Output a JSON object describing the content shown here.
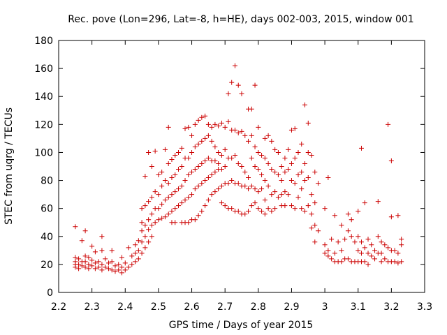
{
  "chart_data": {
    "type": "scatter",
    "title": "Rec. pove (Lon=296, Lat=-8, h=HE), days 002-003, 2015, window 001",
    "xlabel": "GPS time / Days of year 2015",
    "ylabel": "STEC from uqrg / TECUs",
    "xlim": [
      2.2,
      3.3
    ],
    "ylim": [
      0,
      180
    ],
    "xticks": [
      "2.2",
      "2.3",
      "2.4",
      "2.5",
      "2.6",
      "2.7",
      "2.8",
      "2.9",
      "3",
      "3.1",
      "3.2",
      "3.3"
    ],
    "yticks": [
      "0",
      "20",
      "40",
      "60",
      "80",
      "100",
      "120",
      "140",
      "160",
      "180"
    ],
    "grid": false,
    "marker": "+",
    "color": "#cc0000",
    "points": [
      [
        2.25,
        47
      ],
      [
        2.25,
        25
      ],
      [
        2.25,
        22
      ],
      [
        2.25,
        20
      ],
      [
        2.25,
        18
      ],
      [
        2.26,
        24
      ],
      [
        2.26,
        20
      ],
      [
        2.26,
        17
      ],
      [
        2.27,
        37
      ],
      [
        2.27,
        22
      ],
      [
        2.27,
        19
      ],
      [
        2.28,
        44
      ],
      [
        2.28,
        26
      ],
      [
        2.28,
        22
      ],
      [
        2.28,
        18
      ],
      [
        2.29,
        25
      ],
      [
        2.29,
        20
      ],
      [
        2.29,
        17
      ],
      [
        2.3,
        33
      ],
      [
        2.3,
        23
      ],
      [
        2.3,
        19
      ],
      [
        2.31,
        29
      ],
      [
        2.31,
        21
      ],
      [
        2.31,
        17
      ],
      [
        2.32,
        22
      ],
      [
        2.32,
        18
      ],
      [
        2.33,
        40
      ],
      [
        2.33,
        30
      ],
      [
        2.33,
        20
      ],
      [
        2.33,
        16
      ],
      [
        2.34,
        24
      ],
      [
        2.34,
        18
      ],
      [
        2.35,
        21
      ],
      [
        2.35,
        17
      ],
      [
        2.36,
        30
      ],
      [
        2.36,
        22
      ],
      [
        2.36,
        16
      ],
      [
        2.37,
        19
      ],
      [
        2.37,
        15
      ],
      [
        2.38,
        20
      ],
      [
        2.38,
        16
      ],
      [
        2.39,
        25
      ],
      [
        2.39,
        18
      ],
      [
        2.39,
        14
      ],
      [
        2.4,
        21
      ],
      [
        2.4,
        16
      ],
      [
        2.41,
        32
      ],
      [
        2.41,
        18
      ],
      [
        2.42,
        26
      ],
      [
        2.42,
        20
      ],
      [
        2.43,
        34
      ],
      [
        2.43,
        28
      ],
      [
        2.43,
        22
      ],
      [
        2.44,
        37
      ],
      [
        2.44,
        30
      ],
      [
        2.44,
        24
      ],
      [
        2.45,
        60
      ],
      [
        2.45,
        50
      ],
      [
        2.45,
        44
      ],
      [
        2.45,
        36
      ],
      [
        2.45,
        28
      ],
      [
        2.46,
        83
      ],
      [
        2.46,
        62
      ],
      [
        2.46,
        48
      ],
      [
        2.46,
        40
      ],
      [
        2.46,
        32
      ],
      [
        2.47,
        100
      ],
      [
        2.47,
        65
      ],
      [
        2.47,
        52
      ],
      [
        2.47,
        45
      ],
      [
        2.47,
        36
      ],
      [
        2.48,
        90
      ],
      [
        2.48,
        68
      ],
      [
        2.48,
        56
      ],
      [
        2.48,
        48
      ],
      [
        2.48,
        40
      ],
      [
        2.49,
        101
      ],
      [
        2.49,
        72
      ],
      [
        2.49,
        60
      ],
      [
        2.49,
        50
      ],
      [
        2.5,
        84
      ],
      [
        2.5,
        70
      ],
      [
        2.5,
        60
      ],
      [
        2.5,
        52
      ],
      [
        2.51,
        86
      ],
      [
        2.51,
        76
      ],
      [
        2.51,
        63
      ],
      [
        2.51,
        53
      ],
      [
        2.52,
        102
      ],
      [
        2.52,
        80
      ],
      [
        2.52,
        66
      ],
      [
        2.52,
        54
      ],
      [
        2.53,
        118
      ],
      [
        2.53,
        92
      ],
      [
        2.53,
        78
      ],
      [
        2.53,
        68
      ],
      [
        2.53,
        56
      ],
      [
        2.54,
        95
      ],
      [
        2.54,
        82
      ],
      [
        2.54,
        70
      ],
      [
        2.54,
        58
      ],
      [
        2.54,
        50
      ],
      [
        2.55,
        98
      ],
      [
        2.55,
        84
      ],
      [
        2.55,
        72
      ],
      [
        2.55,
        60
      ],
      [
        2.55,
        50
      ],
      [
        2.56,
        100
      ],
      [
        2.56,
        88
      ],
      [
        2.56,
        74
      ],
      [
        2.56,
        62
      ],
      [
        2.57,
        103
      ],
      [
        2.57,
        90
      ],
      [
        2.57,
        76
      ],
      [
        2.57,
        64
      ],
      [
        2.57,
        50
      ],
      [
        2.58,
        117
      ],
      [
        2.58,
        96
      ],
      [
        2.58,
        80
      ],
      [
        2.58,
        66
      ],
      [
        2.58,
        50
      ],
      [
        2.59,
        118
      ],
      [
        2.59,
        96
      ],
      [
        2.59,
        84
      ],
      [
        2.59,
        68
      ],
      [
        2.59,
        50
      ],
      [
        2.6,
        112
      ],
      [
        2.6,
        100
      ],
      [
        2.6,
        86
      ],
      [
        2.6,
        70
      ],
      [
        2.6,
        52
      ],
      [
        2.61,
        120
      ],
      [
        2.61,
        104
      ],
      [
        2.61,
        88
      ],
      [
        2.61,
        74
      ],
      [
        2.61,
        52
      ],
      [
        2.62,
        123
      ],
      [
        2.62,
        106
      ],
      [
        2.62,
        90
      ],
      [
        2.62,
        76
      ],
      [
        2.62,
        55
      ],
      [
        2.63,
        125
      ],
      [
        2.63,
        108
      ],
      [
        2.63,
        92
      ],
      [
        2.63,
        78
      ],
      [
        2.63,
        58
      ],
      [
        2.64,
        126
      ],
      [
        2.64,
        110
      ],
      [
        2.64,
        94
      ],
      [
        2.64,
        80
      ],
      [
        2.64,
        62
      ],
      [
        2.65,
        120
      ],
      [
        2.65,
        112
      ],
      [
        2.65,
        96
      ],
      [
        2.65,
        82
      ],
      [
        2.65,
        66
      ],
      [
        2.66,
        118
      ],
      [
        2.66,
        108
      ],
      [
        2.66,
        94
      ],
      [
        2.66,
        84
      ],
      [
        2.66,
        70
      ],
      [
        2.67,
        120
      ],
      [
        2.67,
        104
      ],
      [
        2.67,
        94
      ],
      [
        2.67,
        86
      ],
      [
        2.67,
        72
      ],
      [
        2.68,
        119
      ],
      [
        2.68,
        100
      ],
      [
        2.68,
        92
      ],
      [
        2.68,
        88
      ],
      [
        2.68,
        74
      ],
      [
        2.69,
        121
      ],
      [
        2.69,
        98
      ],
      [
        2.69,
        88
      ],
      [
        2.69,
        76
      ],
      [
        2.69,
        64
      ],
      [
        2.7,
        118
      ],
      [
        2.7,
        102
      ],
      [
        2.7,
        90
      ],
      [
        2.7,
        78
      ],
      [
        2.7,
        62
      ],
      [
        2.71,
        142
      ],
      [
        2.71,
        122
      ],
      [
        2.71,
        96
      ],
      [
        2.71,
        78
      ],
      [
        2.71,
        60
      ],
      [
        2.72,
        150
      ],
      [
        2.72,
        116
      ],
      [
        2.72,
        96
      ],
      [
        2.72,
        80
      ],
      [
        2.72,
        60
      ],
      [
        2.73,
        162
      ],
      [
        2.73,
        116
      ],
      [
        2.73,
        98
      ],
      [
        2.73,
        78
      ],
      [
        2.73,
        58
      ],
      [
        2.74,
        148
      ],
      [
        2.74,
        114
      ],
      [
        2.74,
        92
      ],
      [
        2.74,
        78
      ],
      [
        2.74,
        58
      ],
      [
        2.75,
        142
      ],
      [
        2.75,
        115
      ],
      [
        2.75,
        90
      ],
      [
        2.75,
        76
      ],
      [
        2.75,
        56
      ],
      [
        2.76,
        112
      ],
      [
        2.76,
        86
      ],
      [
        2.76,
        76
      ],
      [
        2.76,
        56
      ],
      [
        2.77,
        131
      ],
      [
        2.77,
        108
      ],
      [
        2.77,
        82
      ],
      [
        2.77,
        74
      ],
      [
        2.77,
        58
      ],
      [
        2.78,
        131
      ],
      [
        2.78,
        112
      ],
      [
        2.78,
        96
      ],
      [
        2.78,
        76
      ],
      [
        2.78,
        62
      ],
      [
        2.79,
        148
      ],
      [
        2.79,
        104
      ],
      [
        2.79,
        90
      ],
      [
        2.79,
        74
      ],
      [
        2.79,
        64
      ],
      [
        2.8,
        118
      ],
      [
        2.8,
        100
      ],
      [
        2.8,
        88
      ],
      [
        2.8,
        72
      ],
      [
        2.8,
        60
      ],
      [
        2.81,
        98
      ],
      [
        2.81,
        84
      ],
      [
        2.81,
        74
      ],
      [
        2.81,
        58
      ],
      [
        2.82,
        110
      ],
      [
        2.82,
        96
      ],
      [
        2.82,
        80
      ],
      [
        2.82,
        66
      ],
      [
        2.82,
        56
      ],
      [
        2.83,
        112
      ],
      [
        2.83,
        92
      ],
      [
        2.83,
        76
      ],
      [
        2.83,
        60
      ],
      [
        2.84,
        108
      ],
      [
        2.84,
        88
      ],
      [
        2.84,
        70
      ],
      [
        2.84,
        58
      ],
      [
        2.85,
        102
      ],
      [
        2.85,
        86
      ],
      [
        2.85,
        72
      ],
      [
        2.85,
        60
      ],
      [
        2.86,
        100
      ],
      [
        2.86,
        84
      ],
      [
        2.86,
        68
      ],
      [
        2.87,
        90
      ],
      [
        2.87,
        80
      ],
      [
        2.87,
        70
      ],
      [
        2.87,
        62
      ],
      [
        2.88,
        96
      ],
      [
        2.88,
        86
      ],
      [
        2.88,
        72
      ],
      [
        2.88,
        62
      ],
      [
        2.89,
        102
      ],
      [
        2.89,
        88
      ],
      [
        2.89,
        70
      ],
      [
        2.9,
        116
      ],
      [
        2.9,
        92
      ],
      [
        2.9,
        80
      ],
      [
        2.9,
        62
      ],
      [
        2.91,
        117
      ],
      [
        2.91,
        96
      ],
      [
        2.91,
        78
      ],
      [
        2.91,
        60
      ],
      [
        2.92,
        100
      ],
      [
        2.92,
        84
      ],
      [
        2.92,
        68
      ],
      [
        2.93,
        106
      ],
      [
        2.93,
        86
      ],
      [
        2.93,
        74
      ],
      [
        2.93,
        60
      ],
      [
        2.94,
        134
      ],
      [
        2.94,
        92
      ],
      [
        2.94,
        80
      ],
      [
        2.94,
        58
      ],
      [
        2.95,
        121
      ],
      [
        2.95,
        100
      ],
      [
        2.95,
        82
      ],
      [
        2.95,
        62
      ],
      [
        2.96,
        98
      ],
      [
        2.96,
        70
      ],
      [
        2.96,
        56
      ],
      [
        2.96,
        46
      ],
      [
        2.97,
        86
      ],
      [
        2.97,
        64
      ],
      [
        2.97,
        48
      ],
      [
        2.97,
        36
      ],
      [
        2.98,
        78
      ],
      [
        2.98,
        44
      ],
      [
        3.0,
        60
      ],
      [
        3.0,
        34
      ],
      [
        3.0,
        28
      ],
      [
        3.01,
        82
      ],
      [
        3.01,
        30
      ],
      [
        3.01,
        26
      ],
      [
        3.02,
        38
      ],
      [
        3.02,
        24
      ],
      [
        3.03,
        55
      ],
      [
        3.03,
        28
      ],
      [
        3.03,
        22
      ],
      [
        3.04,
        36
      ],
      [
        3.04,
        22
      ],
      [
        3.05,
        48
      ],
      [
        3.05,
        30
      ],
      [
        3.05,
        22
      ],
      [
        3.06,
        38
      ],
      [
        3.06,
        24
      ],
      [
        3.07,
        56
      ],
      [
        3.07,
        44
      ],
      [
        3.07,
        24
      ],
      [
        3.08,
        52
      ],
      [
        3.08,
        40
      ],
      [
        3.08,
        22
      ],
      [
        3.09,
        36
      ],
      [
        3.09,
        22
      ],
      [
        3.1,
        58
      ],
      [
        3.1,
        40
      ],
      [
        3.1,
        30
      ],
      [
        3.1,
        22
      ],
      [
        3.11,
        103
      ],
      [
        3.11,
        36
      ],
      [
        3.11,
        28
      ],
      [
        3.11,
        22
      ],
      [
        3.12,
        64
      ],
      [
        3.12,
        32
      ],
      [
        3.12,
        22
      ],
      [
        3.13,
        38
      ],
      [
        3.13,
        28
      ],
      [
        3.13,
        20
      ],
      [
        3.14,
        34
      ],
      [
        3.14,
        26
      ],
      [
        3.15,
        30
      ],
      [
        3.15,
        24
      ],
      [
        3.16,
        65
      ],
      [
        3.16,
        40
      ],
      [
        3.16,
        28
      ],
      [
        3.17,
        36
      ],
      [
        3.17,
        28
      ],
      [
        3.17,
        22
      ],
      [
        3.18,
        34
      ],
      [
        3.18,
        24
      ],
      [
        3.19,
        120
      ],
      [
        3.19,
        32
      ],
      [
        3.19,
        22
      ],
      [
        3.2,
        94
      ],
      [
        3.2,
        54
      ],
      [
        3.2,
        30
      ],
      [
        3.2,
        22
      ],
      [
        3.21,
        30
      ],
      [
        3.21,
        22
      ],
      [
        3.22,
        55
      ],
      [
        3.22,
        28
      ],
      [
        3.22,
        21
      ],
      [
        3.23,
        38
      ],
      [
        3.23,
        34
      ],
      [
        3.23,
        22
      ]
    ]
  }
}
